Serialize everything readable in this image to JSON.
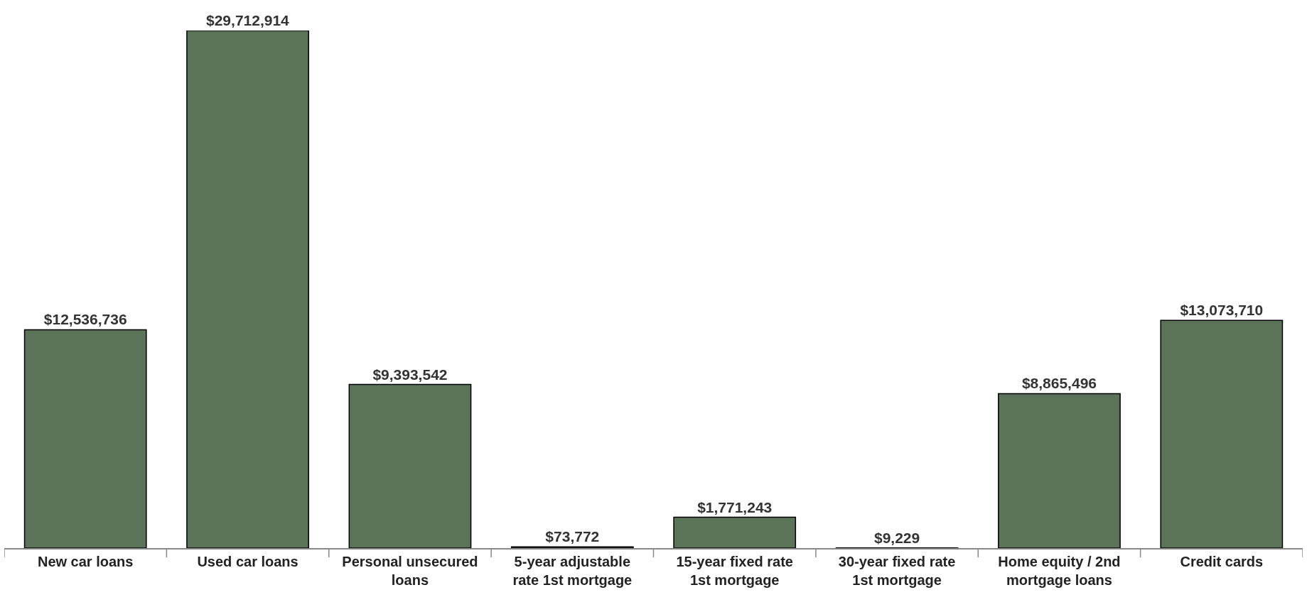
{
  "chart_data": {
    "type": "bar",
    "categories": [
      "New car loans",
      "Used car loans",
      "Personal unsecured loans",
      "5-year adjustable rate 1st mortgage",
      "15-year fixed rate 1st mortgage",
      "30-year fixed rate 1st mortgage",
      "Home equity / 2nd mortgage loans",
      "Credit cards"
    ],
    "values": [
      12536736,
      29712914,
      9393542,
      73772,
      1771243,
      9229,
      8865496,
      13073710
    ],
    "value_labels": [
      "$12,536,736",
      "$29,712,914",
      "$9,393,542",
      "$73,772",
      "$1,771,243",
      "$9,229",
      "$8,865,496",
      "$13,073,710"
    ],
    "color": "#5a7359"
  }
}
